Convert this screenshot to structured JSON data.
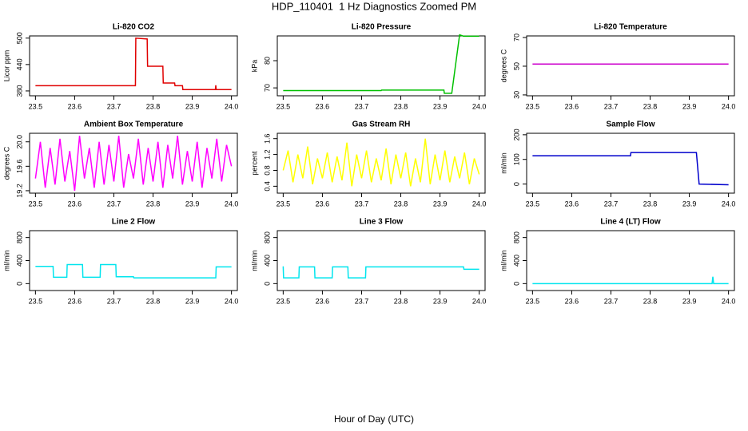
{
  "title": "HDP_110401  1 Hz Diagnostics Zoomed PM",
  "xlabel": "Hour of Day (UTC)",
  "chart_data": [
    {
      "type": "line",
      "title": "Li-820 CO2",
      "ylabel": "Licor ppm",
      "color": "#e00000",
      "x": [
        23.5,
        23.755,
        23.756,
        23.785,
        23.786,
        23.825,
        23.826,
        23.855,
        23.856,
        23.875,
        23.876,
        23.959,
        23.96,
        23.961,
        24.0
      ],
      "values": [
        392,
        392,
        500,
        498,
        436,
        436,
        398,
        398,
        392,
        392,
        383,
        383,
        393,
        383,
        383
      ],
      "xlim": [
        23.485,
        24.015
      ],
      "xticks": [
        23.5,
        23.6,
        23.7,
        23.8,
        23.9,
        {
          "value": 24,
          "label": "24.0"
        }
      ],
      "ylim": [
        369,
        505
      ],
      "yticks": [
        380,
        440,
        500
      ]
    },
    {
      "type": "line",
      "title": "Li-820 Pressure",
      "ylabel": "kPa",
      "color": "#00c000",
      "x": [
        23.5,
        23.75,
        23.751,
        23.91,
        23.911,
        23.93,
        23.95,
        23.96,
        24.0
      ],
      "values": [
        69,
        69,
        69.2,
        69.2,
        68,
        68,
        89.5,
        89,
        89
      ],
      "xlim": [
        23.485,
        24.015
      ],
      "xticks": [
        23.5,
        23.6,
        23.7,
        23.8,
        23.9,
        {
          "value": 24,
          "label": "24.0"
        }
      ],
      "ylim": [
        67.1,
        89.1
      ],
      "yticks": [
        70,
        80
      ]
    },
    {
      "type": "line",
      "title": "Li-820 Temperature",
      "ylabel": "degrees C",
      "color": "#cc00cc",
      "x": [
        23.5,
        24.0
      ],
      "values": [
        51.5,
        51.5
      ],
      "xlim": [
        23.485,
        24.015
      ],
      "xticks": [
        23.5,
        23.6,
        23.7,
        23.8,
        23.9,
        {
          "value": 24,
          "label": "24.0"
        }
      ],
      "ylim": [
        29.4,
        71.1
      ],
      "yticks": [
        30,
        50,
        70
      ]
    },
    {
      "type": "line",
      "title": "Ambient Box Temperature",
      "ylabel": "degrees C",
      "color": "#ff00ff",
      "x": [
        23.5,
        23.5125,
        23.525,
        23.5375,
        23.55,
        23.5625,
        23.575,
        23.5875,
        23.6,
        23.6125,
        23.625,
        23.6375,
        23.65,
        23.6625,
        23.675,
        23.6875,
        23.7,
        23.7125,
        23.725,
        23.7375,
        23.75,
        23.7625,
        23.775,
        23.7875,
        23.8,
        23.8125,
        23.825,
        23.8375,
        23.85,
        23.8625,
        23.875,
        23.8875,
        23.9,
        23.9125,
        23.925,
        23.9375,
        23.95,
        23.9625,
        23.975,
        23.9875,
        24.0
      ],
      "values": [
        19.4,
        20.0,
        19.25,
        19.9,
        19.3,
        20.05,
        19.35,
        19.85,
        19.2,
        20.1,
        19.4,
        19.9,
        19.25,
        20.0,
        19.3,
        19.95,
        19.35,
        20.1,
        19.25,
        19.8,
        19.4,
        20.05,
        19.3,
        19.9,
        19.35,
        20.0,
        19.25,
        19.95,
        19.4,
        20.1,
        19.3,
        19.85,
        19.35,
        20.0,
        19.25,
        19.9,
        19.4,
        20.05,
        19.35,
        19.95,
        19.6
      ],
      "xlim": [
        23.485,
        24.015
      ],
      "xticks": [
        23.5,
        23.6,
        23.7,
        23.8,
        23.9,
        {
          "value": 24,
          "label": "24.0"
        }
      ],
      "ylim": [
        19.16,
        20.14
      ],
      "yticks": [
        19.2,
        19.6,
        {
          "value": 20,
          "label": "20.0"
        }
      ]
    },
    {
      "type": "line",
      "title": "Gas Stream RH",
      "ylabel": "percent",
      "color": "#ffff00",
      "x": [
        23.5,
        23.5125,
        23.525,
        23.5375,
        23.55,
        23.5625,
        23.575,
        23.5875,
        23.6,
        23.6125,
        23.625,
        23.6375,
        23.65,
        23.6625,
        23.675,
        23.6875,
        23.7,
        23.7125,
        23.725,
        23.7375,
        23.75,
        23.7625,
        23.775,
        23.7875,
        23.8,
        23.8125,
        23.825,
        23.8375,
        23.85,
        23.8625,
        23.875,
        23.8875,
        23.9,
        23.9125,
        23.925,
        23.9375,
        23.95,
        23.9625,
        23.975,
        23.9875,
        24.0
      ],
      "values": [
        0.8,
        1.3,
        0.5,
        1.2,
        0.6,
        1.4,
        0.45,
        1.1,
        0.6,
        1.25,
        0.5,
        1.15,
        0.55,
        1.5,
        0.4,
        1.2,
        0.6,
        1.3,
        0.5,
        1.1,
        0.55,
        1.35,
        0.45,
        1.2,
        0.6,
        1.25,
        0.4,
        1.1,
        0.5,
        1.6,
        0.45,
        1.2,
        0.55,
        1.3,
        0.5,
        1.15,
        0.6,
        1.25,
        0.45,
        1.1,
        0.7
      ],
      "xlim": [
        23.485,
        24.015
      ],
      "xticks": [
        23.5,
        23.6,
        23.7,
        23.8,
        23.9,
        {
          "value": 24,
          "label": "24.0"
        }
      ],
      "ylim": [
        0.226,
        1.735
      ],
      "yticks": [
        0.4,
        0.8,
        1.2,
        1.6
      ]
    },
    {
      "type": "line",
      "title": "Sample Flow",
      "ylabel": "ml/min",
      "color": "#0000cc",
      "x": [
        23.5,
        23.75,
        23.751,
        23.918,
        23.925,
        24.0
      ],
      "values": [
        115,
        115,
        128,
        128,
        0,
        -3
      ],
      "xlim": [
        23.485,
        24.015
      ],
      "xticks": [
        23.5,
        23.6,
        23.7,
        23.8,
        23.9,
        {
          "value": 24,
          "label": "24.0"
        }
      ],
      "ylim": [
        -37,
        206
      ],
      "yticks": [
        0,
        100,
        200
      ]
    },
    {
      "type": "line",
      "title": "Line 2 Flow",
      "ylabel": "ml/min",
      "color": "#00e5ee",
      "x": [
        23.5,
        23.545,
        23.546,
        23.58,
        23.581,
        23.62,
        23.621,
        23.665,
        23.666,
        23.705,
        23.706,
        23.75,
        23.751,
        23.96,
        23.961,
        24.0
      ],
      "values": [
        300,
        300,
        110,
        110,
        330,
        330,
        110,
        110,
        330,
        330,
        120,
        120,
        100,
        100,
        290,
        290
      ],
      "xlim": [
        23.485,
        24.015
      ],
      "xticks": [
        23.5,
        23.6,
        23.7,
        23.8,
        23.9,
        {
          "value": 24,
          "label": "24.0"
        }
      ],
      "ylim": [
        -120,
        920
      ],
      "yticks": [
        0,
        400,
        800
      ]
    },
    {
      "type": "line",
      "title": "Line 3 Flow",
      "ylabel": "ml/min",
      "color": "#00e5ee",
      "x": [
        23.5,
        23.501,
        23.54,
        23.541,
        23.58,
        23.581,
        23.625,
        23.626,
        23.665,
        23.666,
        23.71,
        23.711,
        23.96,
        23.961,
        24.0
      ],
      "values": [
        300,
        100,
        100,
        290,
        290,
        100,
        100,
        290,
        290,
        100,
        100,
        290,
        290,
        250,
        250
      ],
      "xlim": [
        23.485,
        24.015
      ],
      "xticks": [
        23.5,
        23.6,
        23.7,
        23.8,
        23.9,
        {
          "value": 24,
          "label": "24.0"
        }
      ],
      "ylim": [
        -120,
        920
      ],
      "yticks": [
        0,
        400,
        800
      ]
    },
    {
      "type": "line",
      "title": "Line 4 (LT) Flow",
      "ylabel": "ml/min",
      "color": "#00e5ee",
      "x": [
        23.5,
        23.958,
        23.96,
        23.962,
        24.0
      ],
      "values": [
        0,
        0,
        120,
        0,
        0
      ],
      "xlim": [
        23.485,
        24.015
      ],
      "xticks": [
        23.5,
        23.6,
        23.7,
        23.8,
        23.9,
        {
          "value": 24,
          "label": "24.0"
        }
      ],
      "ylim": [
        -120,
        920
      ],
      "yticks": [
        0,
        400,
        800
      ]
    }
  ]
}
